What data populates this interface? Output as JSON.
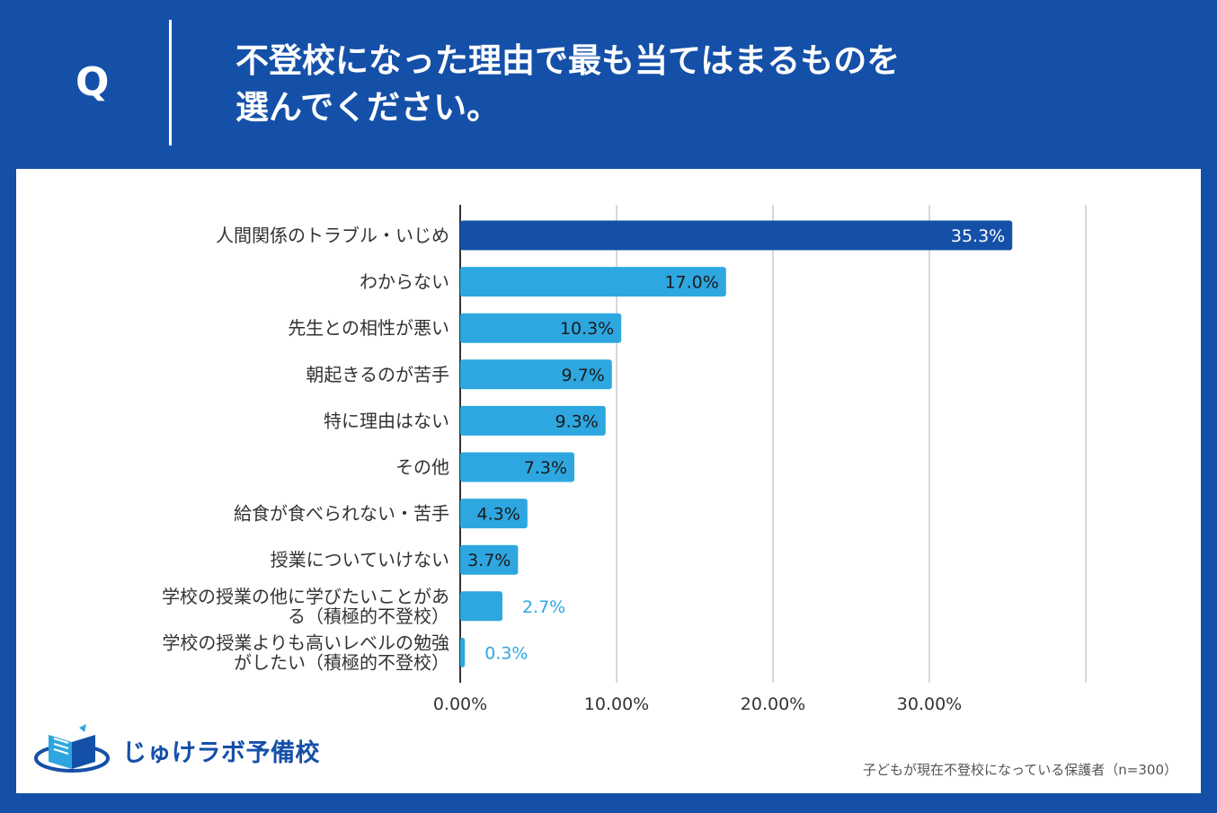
{
  "header": {
    "q_label": "Q",
    "title_line1": "不登校になった理由で最も当てはまるものを",
    "title_line2": "選んでください。"
  },
  "chart_data": {
    "type": "bar",
    "orientation": "horizontal",
    "title": "不登校になった理由で最も当てはまるものを選んでください。",
    "categories": [
      [
        "人間関係のトラブル・いじめ"
      ],
      [
        "わからない"
      ],
      [
        "先生との相性が悪い"
      ],
      [
        "朝起きるのが苦手"
      ],
      [
        "特に理由はない"
      ],
      [
        "その他"
      ],
      [
        "給食が食べられない・苦手"
      ],
      [
        "授業についていけない"
      ],
      [
        "学校の授業の他に学びたいことがあ",
        "る（積極的不登校）"
      ],
      [
        "学校の授業よりも高いレベルの勉強",
        "がしたい（積極的不登校）"
      ]
    ],
    "values": [
      35.3,
      17.0,
      10.3,
      9.7,
      9.3,
      7.3,
      4.3,
      3.7,
      2.7,
      0.3
    ],
    "value_labels": [
      "35.3%",
      "17.0%",
      "10.3%",
      "9.7%",
      "9.3%",
      "7.3%",
      "4.3%",
      "3.7%",
      "2.7%",
      "0.3%"
    ],
    "xlim": [
      0,
      40
    ],
    "xticks": [
      0,
      10,
      20,
      30,
      40
    ],
    "xtick_labels": [
      "0.00%",
      "10.00%",
      "20.00%",
      "30.00%",
      ""
    ],
    "grid": true,
    "colors": {
      "highlight": "#1550a8",
      "bar": "#2ea7e0",
      "label_inside_light": "#ffffff",
      "label_inside_dark": "#1a1a1a",
      "label_outside": "#2ea7e0",
      "grid": "#cccccc",
      "axis": "#333333"
    }
  },
  "branding": {
    "logo_text": "じゅけラボ予備校"
  },
  "footer": {
    "note": "子どもが現在不登校になっている保護者（n=300）"
  }
}
